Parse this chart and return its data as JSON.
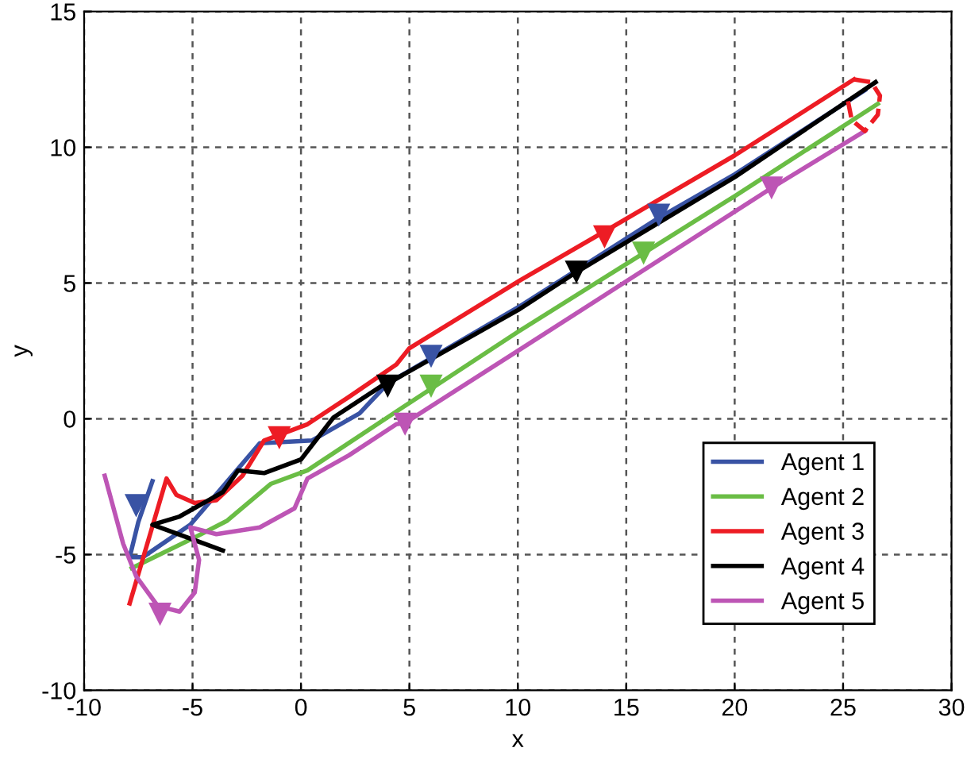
{
  "chart_data": {
    "type": "line",
    "xlabel": "x",
    "ylabel": "y",
    "xlim": [
      -10,
      30
    ],
    "ylim": [
      -10,
      15
    ],
    "xticks": [
      -10,
      -5,
      0,
      5,
      10,
      15,
      20,
      25,
      30
    ],
    "yticks": [
      -10,
      -5,
      0,
      5,
      10,
      15
    ],
    "grid": true,
    "legend": "bottom right",
    "line_style": "solid",
    "marker": "none",
    "series": [
      {
        "name": "Agent 1",
        "color": "#3953a4",
        "x": [
          -6.85,
          -7.5,
          -7.9,
          -7.3,
          -5.1,
          -3.5,
          -1.9,
          0.5,
          2.7,
          4.0,
          10.0,
          16.5,
          20.0,
          26.0
        ],
        "values": [
          -2.3,
          -3.8,
          -5.1,
          -5.1,
          -3.9,
          -2.4,
          -0.9,
          -0.8,
          0.2,
          1.3,
          4.1,
          7.4,
          9.0,
          12.1
        ]
      },
      {
        "name": "Agent 2",
        "color": "#6abd45",
        "x": [
          -7.8,
          -5.1,
          -3.4,
          -1.4,
          0.3,
          4.65,
          10.0,
          15.8,
          20.0,
          26.6
        ],
        "values": [
          -5.5,
          -4.45,
          -3.75,
          -2.4,
          -1.9,
          0.4,
          3.2,
          6.1,
          8.2,
          11.6
        ]
      },
      {
        "name": "Agent 3",
        "color": "#ed1c24",
        "x": [
          -7.9,
          -6.2,
          -5.75,
          -4.9,
          -3.9,
          -2.7,
          -1.7,
          0.3,
          2.2,
          4.4,
          5.0,
          10.1,
          14.0,
          20.0,
          25.5
        ],
        "values": [
          -6.8,
          -2.2,
          -2.8,
          -3.1,
          -3.0,
          -2.1,
          -0.8,
          -0.2,
          0.8,
          2.0,
          2.6,
          5.1,
          6.9,
          9.7,
          12.5
        ]
      },
      {
        "name": "Agent 4",
        "color": "#000000",
        "x": [
          -3.6,
          -6.85,
          -5.6,
          -3.6,
          -2.9,
          -1.7,
          0.0,
          1.5,
          3.7,
          4.0,
          10.0,
          12.7,
          20.0,
          26.5
        ],
        "values": [
          -4.85,
          -3.9,
          -3.6,
          -2.7,
          -1.9,
          -2.0,
          -1.5,
          0.05,
          1.2,
          1.3,
          4.0,
          5.4,
          8.9,
          12.4
        ]
      },
      {
        "name": "Agent 5",
        "color": "#bd55b5",
        "x": [
          -9.05,
          -8.2,
          -7.6,
          -6.6,
          -5.6,
          -4.9,
          -4.7,
          -5.1,
          -3.9,
          -1.9,
          -0.3,
          0.3,
          2.2,
          4.4,
          4.8,
          10.0,
          21.7,
          26.0
        ],
        "values": [
          -2.1,
          -4.6,
          -5.8,
          -6.9,
          -7.1,
          -6.4,
          -5.2,
          -4.0,
          -4.25,
          -4.0,
          -3.3,
          -2.2,
          -1.35,
          -0.2,
          -0.15,
          2.5,
          8.5,
          10.6
        ]
      },
      {
        "color": "#ed1c24",
        "line_style": "dashed",
        "x": [
          25.5,
          26.3,
          26.7,
          26.6,
          26.0,
          25.4,
          25.2
        ],
        "values": [
          12.5,
          12.4,
          11.9,
          11.2,
          10.6,
          11.0,
          11.8
        ]
      },
      {
        "type": "scatter",
        "marker": "triangle",
        "color": "#3953a4",
        "x": [
          -7.6,
          6.0,
          16.5
        ],
        "values": [
          -3.2,
          2.3,
          7.5
        ]
      },
      {
        "type": "scatter",
        "marker": "triangle",
        "color": "#6abd45",
        "x": [
          6.0,
          15.8
        ],
        "values": [
          1.2,
          6.1
        ]
      },
      {
        "type": "scatter",
        "marker": "triangle",
        "color": "#ed1c24",
        "x": [
          -1.0,
          14.0
        ],
        "values": [
          -0.7,
          6.7
        ]
      },
      {
        "type": "scatter",
        "marker": "triangle",
        "color": "#000000",
        "x": [
          4.0,
          12.7
        ],
        "values": [
          1.2,
          5.4
        ]
      },
      {
        "type": "scatter",
        "marker": "triangle",
        "color": "#bd55b5",
        "x": [
          -6.5,
          4.8,
          21.7
        ],
        "values": [
          -7.2,
          -0.2,
          8.5
        ]
      }
    ]
  }
}
